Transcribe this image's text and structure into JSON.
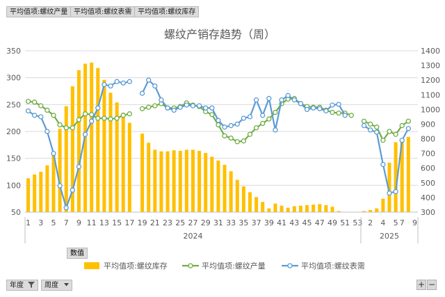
{
  "field_buttons": {
    "top": [
      "平均值项:螺纹产量",
      "平均值项:螺纹表需",
      "平均值项:螺纹库存"
    ],
    "values_label": "数值",
    "year_label": "年度",
    "week_label": "周度",
    "zoom_in": "+",
    "zoom_out": "−"
  },
  "colors": {
    "inventory": "#FFC000",
    "production": "#70AD47",
    "demand": "#5B9BD5"
  },
  "chart_data": {
    "type": "bar+line",
    "title": "螺纹产销存趋势（周）",
    "left_axis": {
      "ticks": [
        50,
        100,
        150,
        200,
        250,
        300,
        350
      ],
      "range": [
        50,
        350
      ]
    },
    "right_axis": {
      "ticks": [
        300,
        400,
        500,
        600,
        700,
        800,
        900,
        1000,
        1100,
        1200,
        1300,
        1400
      ],
      "range": [
        300,
        1400
      ]
    },
    "x_tick_labels": [
      {
        "slot": 0,
        "label": "1"
      },
      {
        "slot": 2,
        "label": "3"
      },
      {
        "slot": 4,
        "label": "5"
      },
      {
        "slot": 6,
        "label": "7"
      },
      {
        "slot": 8,
        "label": "9"
      },
      {
        "slot": 10,
        "label": "11"
      },
      {
        "slot": 12,
        "label": "13"
      },
      {
        "slot": 14,
        "label": "15"
      },
      {
        "slot": 16,
        "label": "17"
      },
      {
        "slot": 18,
        "label": "19"
      },
      {
        "slot": 20,
        "label": "21"
      },
      {
        "slot": 22,
        "label": "23"
      },
      {
        "slot": 24,
        "label": "25"
      },
      {
        "slot": 26,
        "label": "27"
      },
      {
        "slot": 28,
        "label": "29"
      },
      {
        "slot": 30,
        "label": "31"
      },
      {
        "slot": 32,
        "label": "33"
      },
      {
        "slot": 34,
        "label": "35"
      },
      {
        "slot": 36,
        "label": "37"
      },
      {
        "slot": 38,
        "label": "39"
      },
      {
        "slot": 40,
        "label": "41"
      },
      {
        "slot": 42,
        "label": "43"
      },
      {
        "slot": 44,
        "label": "45"
      },
      {
        "slot": 46,
        "label": "47"
      },
      {
        "slot": 48,
        "label": "49"
      },
      {
        "slot": 50,
        "label": "51"
      },
      {
        "slot": 52,
        "label": "53"
      },
      {
        "slot": 54,
        "label": "2"
      },
      {
        "slot": 56,
        "label": "4"
      },
      {
        "slot": 58,
        "label": "5"
      },
      {
        "slot": 59,
        "label": "7"
      },
      {
        "slot": 61,
        "label": "9"
      }
    ],
    "groups": [
      {
        "label": "2024",
        "from": 0,
        "to": 52
      },
      {
        "label": "2025",
        "from": 53,
        "to": 61
      }
    ],
    "series": [
      {
        "name": "平均值项:螺纹库存",
        "type": "bar",
        "axis": "left",
        "values": [
          113,
          120,
          125,
          137,
          162,
          205,
          247,
          284,
          314,
          326,
          328,
          318,
          296,
          272,
          254,
          235,
          216,
          null,
          196,
          179,
          166,
          163,
          163,
          165,
          164,
          166,
          166,
          164,
          160,
          153,
          146,
          138,
          126,
          110,
          98,
          87,
          78,
          69,
          57,
          66,
          62,
          58,
          61,
          62,
          63,
          64,
          65,
          63,
          60,
          52,
          null,
          null,
          null,
          52,
          54,
          57,
          75,
          142,
          180,
          186,
          190,
          null
        ]
      },
      {
        "name": "平均值项:螺纹产量",
        "type": "line",
        "axis": "right",
        "values": [
          1055,
          1050,
          1025,
          995,
          960,
          895,
          875,
          875,
          930,
          970,
          965,
          940,
          940,
          935,
          940,
          960,
          970,
          null,
          1005,
          1015,
          1025,
          1040,
          1010,
          1010,
          1020,
          1045,
          1030,
          1020,
          985,
          965,
          895,
          820,
          805,
          780,
          785,
          830,
          875,
          905,
          935,
          980,
          1040,
          1070,
          1075,
          1040,
          1020,
          1015,
          1015,
          995,
          980,
          975,
          975,
          960,
          null,
          920,
          900,
          880,
          790,
          850,
          830,
          890,
          920,
          null
        ]
      },
      {
        "name": "平均值项:螺纹表需",
        "type": "line",
        "axis": "right",
        "values": [
          990,
          960,
          950,
          850,
          700,
          480,
          330,
          450,
          610,
          830,
          920,
          1010,
          1170,
          1160,
          1190,
          1180,
          1190,
          null,
          1110,
          1200,
          1160,
          1065,
          1010,
          995,
          1015,
          1030,
          1025,
          1025,
          1010,
          1010,
          925,
          880,
          890,
          900,
          940,
          950,
          1065,
          960,
          1075,
          860,
          1065,
          1095,
          1065,
          1040,
          1000,
          1010,
          1005,
          990,
          1030,
          1035,
          960,
          null,
          null,
          890,
          860,
          845,
          625,
          430,
          440,
          790,
          870,
          null
        ]
      }
    ],
    "legend": [
      "平均值项:螺纹库存",
      "平均值项:螺纹产量",
      "平均值项:螺纹表需"
    ],
    "legend_position": "bottom",
    "grid": true
  }
}
